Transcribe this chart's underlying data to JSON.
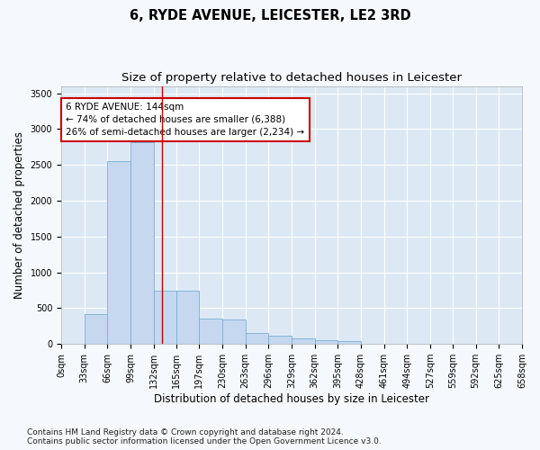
{
  "title": "6, RYDE AVENUE, LEICESTER, LE2 3RD",
  "subtitle": "Size of property relative to detached houses in Leicester",
  "xlabel": "Distribution of detached houses by size in Leicester",
  "ylabel": "Number of detached properties",
  "bar_color": "#c5d8f0",
  "bar_edge_color": "#7aadd4",
  "background_color": "#dce9f5",
  "fig_background": "#f5f8fd",
  "grid_color": "#ffffff",
  "vline_x": 144,
  "vline_color": "#cc0000",
  "annotation_text": "6 RYDE AVENUE: 144sqm\n← 74% of detached houses are smaller (6,388)\n26% of semi-detached houses are larger (2,234) →",
  "annotation_box_color": "#ffffff",
  "annotation_box_edge": "#cc0000",
  "footer_text": "Contains HM Land Registry data © Crown copyright and database right 2024.\nContains public sector information licensed under the Open Government Licence v3.0.",
  "bin_edges": [
    0,
    33,
    66,
    99,
    132,
    165,
    197,
    230,
    263,
    296,
    329,
    362,
    395,
    428,
    461,
    494,
    527,
    559,
    592,
    625,
    658
  ],
  "bar_heights": [
    5,
    420,
    2550,
    2820,
    750,
    740,
    350,
    340,
    155,
    120,
    75,
    50,
    45,
    5,
    0,
    0,
    0,
    0,
    0,
    0
  ],
  "ylim": [
    0,
    3600
  ],
  "yticks": [
    0,
    500,
    1000,
    1500,
    2000,
    2500,
    3000,
    3500
  ],
  "title_fontsize": 10.5,
  "subtitle_fontsize": 9.5,
  "axis_label_fontsize": 8.5,
  "tick_fontsize": 7,
  "footer_fontsize": 6.5,
  "annotation_fontsize": 7.5
}
